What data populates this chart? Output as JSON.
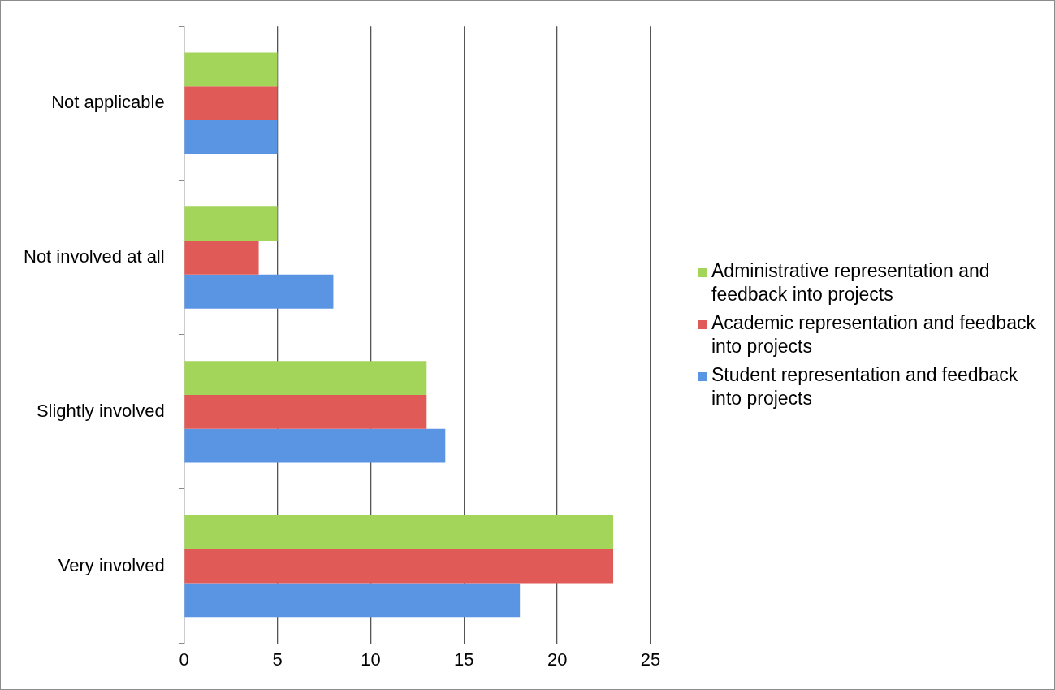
{
  "chart_data": {
    "type": "bar",
    "orientation": "horizontal",
    "categories": [
      "Not applicable",
      "Not involved at all",
      "Slightly involved",
      "Very involved"
    ],
    "series": [
      {
        "name": "Administrative representation and feedback into projects",
        "color": "#a3d55a",
        "values": [
          5,
          5,
          13,
          23
        ]
      },
      {
        "name": "Academic representation and feedback into projects",
        "color": "#e05a58",
        "values": [
          5,
          4,
          13,
          23
        ]
      },
      {
        "name": "Student representation and feedback into projects",
        "color": "#5a95e3",
        "values": [
          5,
          8,
          14,
          18
        ]
      }
    ],
    "xlim": [
      0,
      25
    ],
    "xticks": [
      0,
      5,
      10,
      15,
      20,
      25
    ],
    "grid": "x",
    "legend": "right"
  }
}
